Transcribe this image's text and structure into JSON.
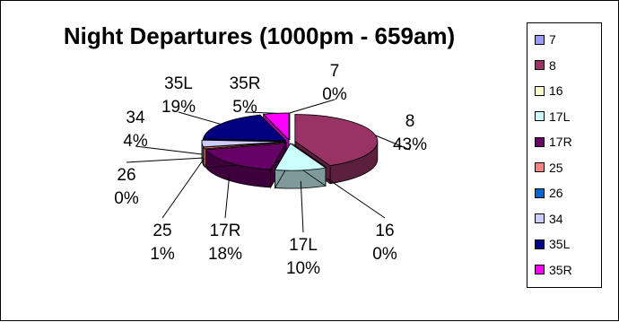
{
  "chart_data": {
    "type": "pie",
    "style": "3d-exploded",
    "title": "Night Departures (1000pm - 659am)",
    "legend_position": "right",
    "categories": [
      "7",
      "8",
      "16",
      "17L",
      "17R",
      "25",
      "26",
      "34",
      "35L",
      "35R"
    ],
    "values": [
      0,
      43,
      0,
      10,
      18,
      1,
      0,
      4,
      19,
      5
    ],
    "percent_labels": [
      "0%",
      "43%",
      "0%",
      "10%",
      "18%",
      "1%",
      "0%",
      "4%",
      "19%",
      "5%"
    ],
    "colors": {
      "top": [
        "#9999FF",
        "#993366",
        "#FFFFCC",
        "#CCFFFF",
        "#660066",
        "#FF8080",
        "#0066CC",
        "#CCCCFF",
        "#000080",
        "#FF00FF"
      ],
      "side": [
        "#6666aa",
        "#5c1f3d",
        "#aaaa88",
        "#7f9a9a",
        "#3d003d",
        "#aa5555",
        "#003d7a",
        "#8888aa",
        "#00004d",
        "#aa00aa"
      ]
    }
  }
}
